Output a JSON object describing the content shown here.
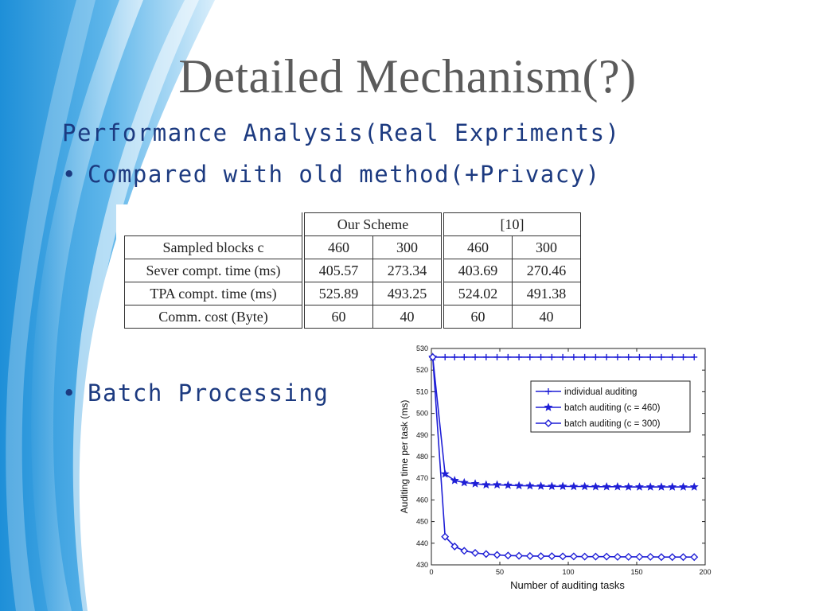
{
  "slide": {
    "title": "Detailed Mechanism(?)",
    "subtitle": "Performance Analysis(Real Expriments)",
    "bullets": [
      {
        "symbol": "•",
        "text": "Compared with old method(+Privacy)"
      },
      {
        "symbol": "•",
        "text": "Batch Processing"
      }
    ]
  },
  "table": {
    "groups": [
      "Our Scheme",
      "[10]"
    ],
    "header_label": "Sampled blocks c",
    "header_values": [
      "460",
      "300",
      "460",
      "300"
    ],
    "rows": [
      {
        "label": "Sever compt. time (ms)",
        "values": [
          "405.57",
          "273.34",
          "403.69",
          "270.46"
        ]
      },
      {
        "label": "TPA compt. time (ms)",
        "values": [
          "525.89",
          "493.25",
          "524.02",
          "491.38"
        ]
      },
      {
        "label": "Comm. cost (Byte)",
        "values": [
          "60",
          "40",
          "60",
          "40"
        ]
      }
    ]
  },
  "chart_data": {
    "type": "line",
    "xlabel": "Number of auditing tasks",
    "ylabel": "Auditing time per task (ms)",
    "xlim": [
      0,
      200
    ],
    "ylim": [
      430,
      530
    ],
    "xticks": [
      0,
      50,
      100,
      150,
      200
    ],
    "yticks": [
      430,
      440,
      450,
      460,
      470,
      480,
      490,
      500,
      510,
      520,
      530
    ],
    "legend_position": "top-right",
    "x": [
      1,
      10,
      17,
      24,
      32,
      40,
      48,
      56,
      64,
      72,
      80,
      88,
      96,
      104,
      112,
      120,
      128,
      136,
      144,
      152,
      160,
      168,
      176,
      184,
      192
    ],
    "series": [
      {
        "name": "individual auditing",
        "marker": "+",
        "color": "#1f1fd6",
        "values": [
          526,
          526,
          526,
          526,
          526,
          526,
          526,
          526,
          526,
          526,
          526,
          526,
          526,
          526,
          526,
          526,
          526,
          526,
          526,
          526,
          526,
          526,
          526,
          526,
          526
        ]
      },
      {
        "name": "batch auditing (c = 460)",
        "marker": "star",
        "color": "#1f1fd6",
        "values": [
          526,
          472,
          469,
          468,
          467.5,
          467,
          467,
          466.8,
          466.6,
          466.5,
          466.4,
          466.3,
          466.3,
          466.2,
          466.2,
          466.1,
          466.1,
          466.1,
          466,
          466,
          466,
          466,
          466,
          466,
          466
        ]
      },
      {
        "name": "batch auditing (c = 300)",
        "marker": "diamond",
        "color": "#1f1fd6",
        "values": [
          526,
          443,
          438.5,
          436.5,
          435.5,
          435,
          434.6,
          434.3,
          434.2,
          434.1,
          434,
          434,
          433.9,
          433.9,
          433.8,
          433.8,
          433.8,
          433.7,
          433.7,
          433.7,
          433.7,
          433.6,
          433.6,
          433.6,
          433.6
        ]
      }
    ]
  }
}
